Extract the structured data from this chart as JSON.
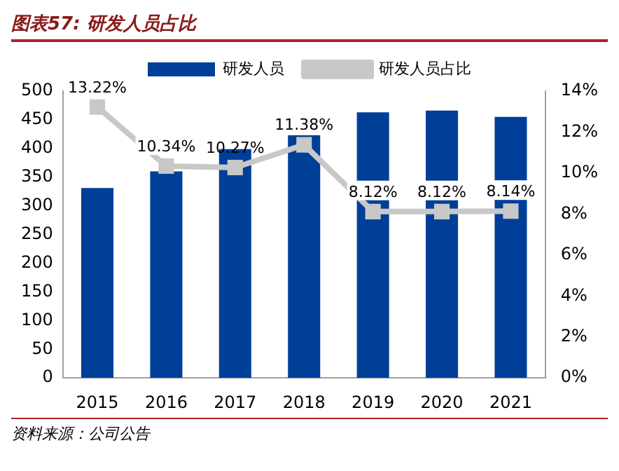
{
  "chart_data": {
    "type": "bar",
    "title": "图表57: 研发人员占比",
    "annotations": [
      "资料来源：公司公告"
    ],
    "categories": [
      "2015",
      "2016",
      "2017",
      "2018",
      "2019",
      "2020",
      "2021"
    ],
    "series": [
      {
        "name": "研发人员",
        "color": "#003f98",
        "values": [
          331,
          360,
          399,
          423,
          463,
          466,
          455
        ]
      },
      {
        "name": "研发人员占比",
        "type": "line",
        "axis": "y2",
        "color": "#c8c8c8",
        "marker": "square",
        "values": [
          13.22,
          10.34,
          10.27,
          11.38,
          8.12,
          8.12,
          8.14
        ],
        "value_labels": [
          "13.22%",
          "10.34%",
          "10.27%",
          "11.38%",
          "8.12%",
          "8.12%",
          "8.14%"
        ]
      }
    ],
    "ylim": [
      0,
      500
    ],
    "yticks": [
      0,
      50,
      100,
      150,
      200,
      250,
      300,
      350,
      400,
      450,
      500
    ],
    "y2lim": [
      0,
      14
    ],
    "y2ticks": [
      {
        "value": 0,
        "label": "0%"
      },
      {
        "value": 2,
        "label": "2%"
      },
      {
        "value": 4,
        "label": "4%"
      },
      {
        "value": 6,
        "label": "6%"
      },
      {
        "value": 8,
        "label": "8%"
      },
      {
        "value": 10,
        "label": "10%"
      },
      {
        "value": 12,
        "label": "12%"
      },
      {
        "value": 14,
        "label": "14%"
      }
    ],
    "grid": false,
    "legend": "top"
  }
}
